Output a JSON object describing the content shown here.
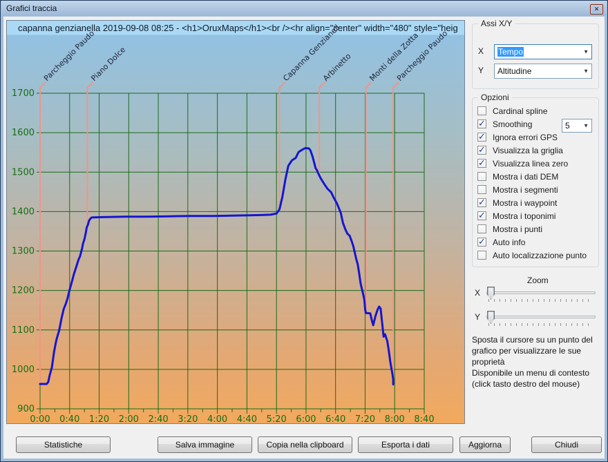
{
  "window": {
    "title": "Grafici traccia",
    "close_glyph": "✕"
  },
  "chart_data": {
    "type": "line",
    "title": "capanna genzianella 2019-09-08 08:25 - <h1>OruxMaps</h1><br /><hr align=\"center\" width=\"480\" style=\"heig",
    "xlabel": "Tempo",
    "ylabel": "Altitudine",
    "grid": true,
    "xlim_minutes": [
      0,
      520
    ],
    "ylim": [
      900,
      1700
    ],
    "x_tick_major_minutes": 40,
    "x_tick_minor_minutes": 20,
    "y_tick_step": 100,
    "x_tick_labels": [
      "0:00",
      "0:40",
      "1:20",
      "2:00",
      "2:40",
      "3:20",
      "4:00",
      "4:40",
      "5:20",
      "6:00",
      "6:40",
      "7:20",
      "8:00",
      "8:40"
    ],
    "y_tick_labels": [
      "900",
      "1000",
      "1100",
      "1200",
      "1300",
      "1400",
      "1500",
      "1600",
      "1700"
    ],
    "line_color": "#1515d2",
    "grid_color": "#1a6b1a",
    "tick_label_color": "#156e15",
    "waypoint_line_color": "#f19489",
    "waypoint_text_color": "#1c2238",
    "series": [
      {
        "name": "Altitudine (m)",
        "points": [
          [
            0,
            963
          ],
          [
            5,
            963
          ],
          [
            9,
            963
          ],
          [
            11,
            968
          ],
          [
            13,
            985
          ],
          [
            16,
            1005
          ],
          [
            19,
            1045
          ],
          [
            22,
            1074
          ],
          [
            26,
            1100
          ],
          [
            29,
            1129
          ],
          [
            32,
            1153
          ],
          [
            35,
            1167
          ],
          [
            37,
            1179
          ],
          [
            40,
            1202
          ],
          [
            43,
            1222
          ],
          [
            46,
            1243
          ],
          [
            49,
            1260
          ],
          [
            52,
            1278
          ],
          [
            54,
            1286
          ],
          [
            57,
            1307
          ],
          [
            58,
            1318
          ],
          [
            60,
            1330
          ],
          [
            62,
            1347
          ],
          [
            63,
            1359
          ],
          [
            65,
            1368
          ],
          [
            66,
            1376
          ],
          [
            68,
            1382
          ],
          [
            70,
            1385
          ],
          [
            85,
            1386
          ],
          [
            115,
            1387
          ],
          [
            145,
            1387
          ],
          [
            175,
            1388
          ],
          [
            205,
            1389
          ],
          [
            235,
            1389
          ],
          [
            265,
            1390
          ],
          [
            295,
            1391
          ],
          [
            312,
            1392
          ],
          [
            320,
            1395
          ],
          [
            324,
            1405
          ],
          [
            328,
            1437
          ],
          [
            332,
            1481
          ],
          [
            336,
            1516
          ],
          [
            341,
            1530
          ],
          [
            346,
            1536
          ],
          [
            350,
            1551
          ],
          [
            355,
            1557
          ],
          [
            359,
            1561
          ],
          [
            364,
            1560
          ],
          [
            366,
            1555
          ],
          [
            369,
            1539
          ],
          [
            373,
            1510
          ],
          [
            375,
            1504
          ],
          [
            377,
            1495
          ],
          [
            380,
            1484
          ],
          [
            385,
            1469
          ],
          [
            389,
            1458
          ],
          [
            394,
            1449
          ],
          [
            397,
            1437
          ],
          [
            402,
            1420
          ],
          [
            407,
            1397
          ],
          [
            410,
            1371
          ],
          [
            413,
            1356
          ],
          [
            416,
            1344
          ],
          [
            419,
            1339
          ],
          [
            422,
            1324
          ],
          [
            424,
            1312
          ],
          [
            426,
            1296
          ],
          [
            428,
            1280
          ],
          [
            430,
            1266
          ],
          [
            432,
            1243
          ],
          [
            434,
            1217
          ],
          [
            437,
            1193
          ],
          [
            439,
            1176
          ],
          [
            440,
            1152
          ],
          [
            441,
            1143
          ],
          [
            447,
            1142
          ],
          [
            449,
            1125
          ],
          [
            451,
            1112
          ],
          [
            454,
            1135
          ],
          [
            457,
            1152
          ],
          [
            459,
            1159
          ],
          [
            461,
            1154
          ],
          [
            463,
            1118
          ],
          [
            465,
            1083
          ],
          [
            467,
            1089
          ],
          [
            468,
            1083
          ],
          [
            470,
            1072
          ],
          [
            472,
            1048
          ],
          [
            474,
            1020
          ],
          [
            476,
            998
          ],
          [
            477,
            988
          ],
          [
            478,
            975
          ],
          [
            478,
            962
          ]
        ]
      }
    ],
    "waypoints": [
      {
        "name": "Parcheggio Paudo",
        "t": 0,
        "alt": 963
      },
      {
        "name": "Piano Dolce",
        "t": 64,
        "alt": 1363
      },
      {
        "name": "Capanna Genzianell",
        "t": 324,
        "alt": 1405
      },
      {
        "name": "Arbinetto",
        "t": 378,
        "alt": 1491
      },
      {
        "name": "Monti della Zotta",
        "t": 441,
        "alt": 1143
      },
      {
        "name": "Parcheggio Paudo",
        "t": 478,
        "alt": 982
      }
    ]
  },
  "axes_panel": {
    "legend": "Assi X/Y",
    "x_label": "X",
    "x_value": "Tempo",
    "y_label": "Y",
    "y_value": "Altitudine"
  },
  "options_panel": {
    "legend": "Opzioni",
    "smoothing_value": "5",
    "items": [
      {
        "label": "Cardinal spline",
        "checked": false
      },
      {
        "label": "Smoothing",
        "checked": true
      },
      {
        "label": "Ignora errori GPS",
        "checked": true
      },
      {
        "label": "Visualizza la griglia",
        "checked": true
      },
      {
        "label": "Visualizza linea zero",
        "checked": true
      },
      {
        "label": "Mostra i dati DEM",
        "checked": false
      },
      {
        "label": "Mostra i segmenti",
        "checked": false
      },
      {
        "label": "Mostra i waypoint",
        "checked": true
      },
      {
        "label": "Mostra i toponimi",
        "checked": true
      },
      {
        "label": "Mostra i punti",
        "checked": false
      },
      {
        "label": "Auto info",
        "checked": true
      },
      {
        "label": "Auto localizzazione punto",
        "checked": false
      }
    ]
  },
  "zoom_panel": {
    "title": "Zoom",
    "x_label": "X",
    "y_label": "Y"
  },
  "help": {
    "line1": "Sposta il cursore su un punto del grafico per visualizzare le sue proprietà",
    "line2": "Disponibile un menu di contesto (click tasto destro del mouse)"
  },
  "buttons": {
    "statistics": "Statistiche",
    "save_image": "Salva immagine",
    "copy_clipboard": "Copia nella clipboard",
    "export_data": "Esporta i dati",
    "refresh": "Aggiorna",
    "close": "Chiudi"
  }
}
